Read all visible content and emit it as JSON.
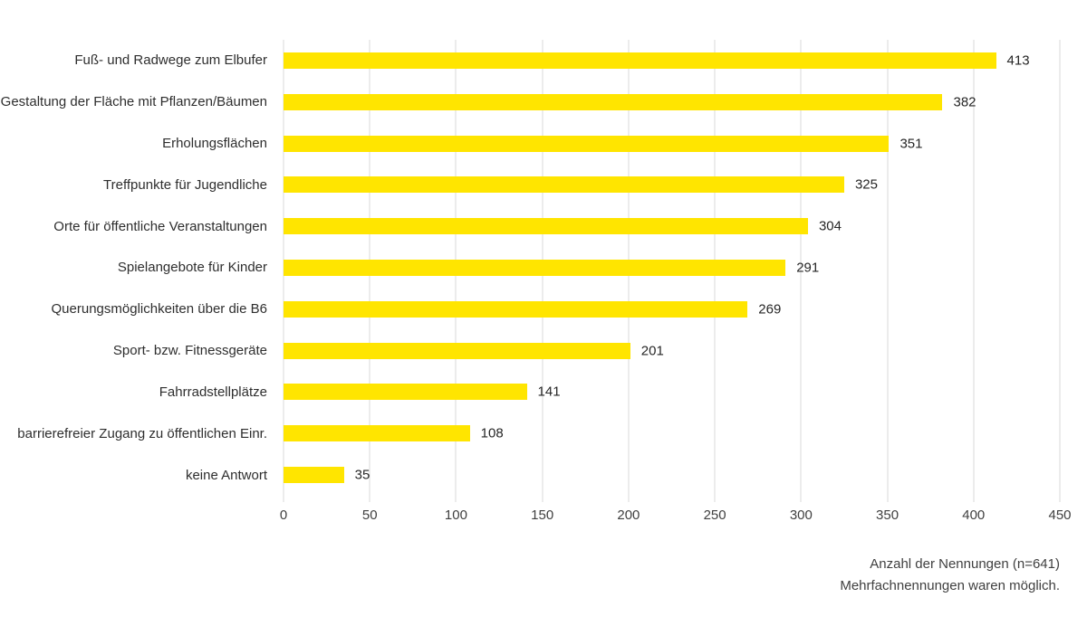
{
  "chart_data": {
    "type": "bar",
    "orientation": "horizontal",
    "title": "",
    "categories": [
      "Fuß- und Radwege zum Elbufer",
      "Gestaltung der Fläche mit Pflanzen/Bäumen",
      "Erholungsflächen",
      "Treffpunkte für Jugendliche",
      "Orte für öffentliche Veranstaltungen",
      "Spielangebote für Kinder",
      "Querungsmöglichkeiten über die B6",
      "Sport- bzw. Fitnessgeräte",
      "Fahrradstellplätze",
      "barrierefreier Zugang zu öffentlichen Einr.",
      "keine Antwort"
    ],
    "values": [
      413,
      382,
      351,
      325,
      304,
      291,
      269,
      201,
      141,
      108,
      35
    ],
    "xlim": [
      0,
      450
    ],
    "x_ticks": [
      0,
      50,
      100,
      150,
      200,
      250,
      300,
      350,
      400,
      450
    ],
    "grid": true,
    "legend": false,
    "data_labels": true,
    "bar_color": "#FFE500",
    "gridline_color": "#D9D9D9"
  },
  "footer": {
    "line1": "Anzahl der Nennungen (n=641)",
    "line2": "Mehrfachnennungen waren möglich."
  }
}
